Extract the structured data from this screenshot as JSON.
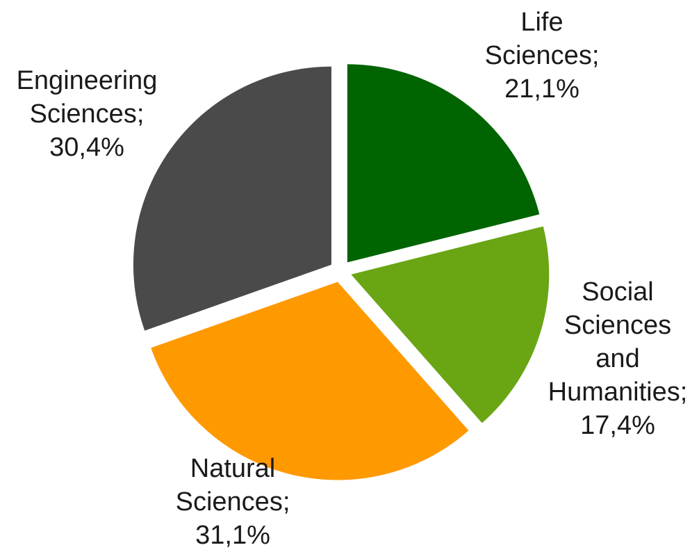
{
  "chart_data": {
    "type": "pie",
    "exploded": true,
    "start_angle_deg": 0,
    "direction": "clockwise",
    "slices": [
      {
        "label_lines": [
          "Life",
          "Sciences;",
          "21,1%"
        ],
        "value": 21.1,
        "color": "#006400"
      },
      {
        "label_lines": [
          "Social",
          "Sciences",
          "and",
          "Humanities;",
          "17,4%"
        ],
        "value": 17.4,
        "color": "#6aa514"
      },
      {
        "label_lines": [
          "Natural",
          "Sciences;",
          "31,1%"
        ],
        "value": 31.1,
        "color": "#ff9900"
      },
      {
        "label_lines": [
          "Engineering",
          "Sciences;",
          "30,4%"
        ],
        "value": 30.4,
        "color": "#4a4a4a"
      }
    ]
  }
}
